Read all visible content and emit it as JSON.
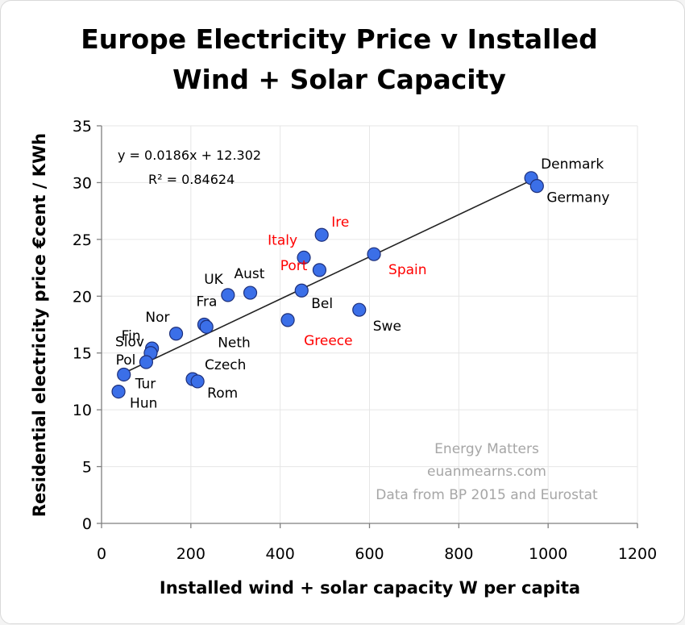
{
  "chart_data": {
    "type": "scatter",
    "title": [
      "Europe Electricity Price v Installed",
      "Wind + Solar Capacity"
    ],
    "xlabel": "Installed wind + solar capacity W per capita",
    "ylabel": "Residential electricity price €cent / KWh",
    "xlim": [
      0,
      1200
    ],
    "ylim": [
      0,
      35
    ],
    "xticks": [
      0,
      200,
      400,
      600,
      800,
      1000,
      1200
    ],
    "yticks": [
      0,
      5,
      10,
      15,
      20,
      25,
      30,
      35
    ],
    "grid": "horizontal and vertical",
    "points": [
      {
        "label": "Denmark",
        "x": 962,
        "y": 30.4,
        "color": "#000000"
      },
      {
        "label": "Germany",
        "x": 975,
        "y": 29.7,
        "color": "#000000"
      },
      {
        "label": "Ire",
        "x": 493,
        "y": 25.4,
        "color": "#ff0000"
      },
      {
        "label": "Italy",
        "x": 453,
        "y": 23.4,
        "color": "#ff0000"
      },
      {
        "label": "Spain",
        "x": 610,
        "y": 23.7,
        "color": "#ff0000"
      },
      {
        "label": "Port",
        "x": 488,
        "y": 22.3,
        "color": "#ff0000"
      },
      {
        "label": "Bel",
        "x": 448,
        "y": 20.5,
        "color": "#000000"
      },
      {
        "label": "UK",
        "x": 283,
        "y": 20.1,
        "color": "#000000"
      },
      {
        "label": "Aust",
        "x": 333,
        "y": 20.3,
        "color": "#000000"
      },
      {
        "label": "Greece",
        "x": 417,
        "y": 17.9,
        "color": "#ff0000"
      },
      {
        "label": "Swe",
        "x": 577,
        "y": 18.8,
        "color": "#000000"
      },
      {
        "label": "Fra",
        "x": 230,
        "y": 17.5,
        "color": "#000000"
      },
      {
        "label": "Neth",
        "x": 235,
        "y": 17.3,
        "color": "#000000"
      },
      {
        "label": "Nor",
        "x": 167,
        "y": 16.7,
        "color": "#000000"
      },
      {
        "label": "Fin",
        "x": 113,
        "y": 15.4,
        "color": "#000000"
      },
      {
        "label": "Slov",
        "x": 110,
        "y": 15.0,
        "color": "#000000"
      },
      {
        "label": "Pol",
        "x": 100,
        "y": 14.2,
        "color": "#000000"
      },
      {
        "label": "Tur",
        "x": 50,
        "y": 13.1,
        "color": "#000000"
      },
      {
        "label": "Hun",
        "x": 38,
        "y": 11.6,
        "color": "#000000"
      },
      {
        "label": "Czech",
        "x": 204,
        "y": 12.7,
        "color": "#000000"
      },
      {
        "label": "Rom",
        "x": 215,
        "y": 12.5,
        "color": "#000000"
      }
    ],
    "trendline": {
      "slope": 0.0186,
      "intercept": 12.302,
      "x_range": [
        50,
        962
      ]
    },
    "annotations": [
      "y = 0.0186x + 12.302",
      "R² = 0.84624"
    ],
    "watermark": [
      "Energy Matters",
      "euanmearns.com",
      "Data from BP 2015 and Eurostat"
    ],
    "marker_color": "#3b6fe8"
  }
}
